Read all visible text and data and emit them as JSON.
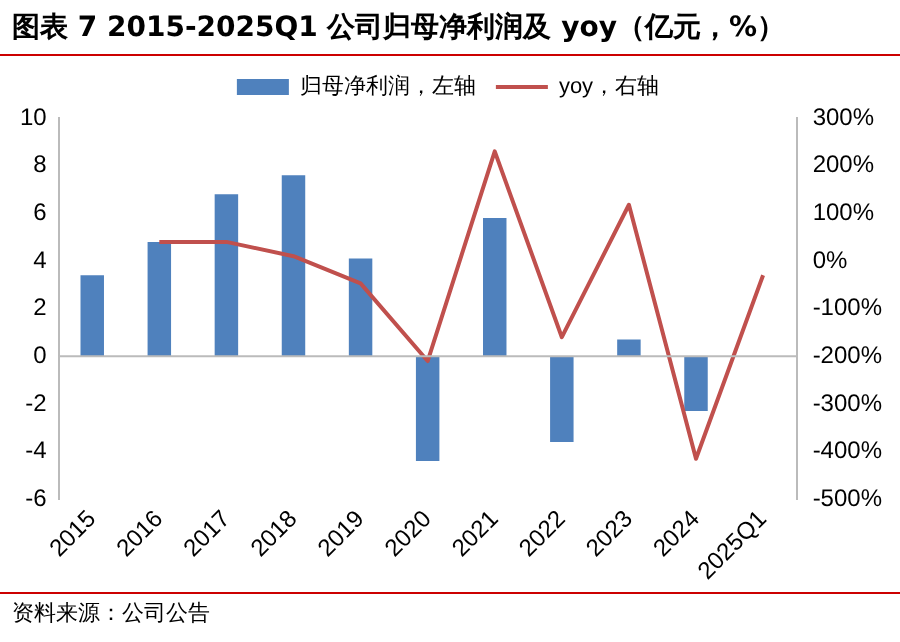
{
  "chart_data": {
    "type": "bar",
    "title": "图表 7 2015-2025Q1 公司归母净利润及 yoy（亿元，%）",
    "categories": [
      "2015",
      "2016",
      "2017",
      "2018",
      "2019",
      "2020",
      "2021",
      "2022",
      "2023",
      "2024",
      "2025Q1"
    ],
    "series": [
      {
        "name": "归母净利润，左轴",
        "color": "#4f81bd",
        "values": [
          3.4,
          4.8,
          6.8,
          7.6,
          4.1,
          -4.4,
          5.8,
          -3.6,
          0.7,
          -2.3,
          null
        ]
      },
      {
        "name": "yoy，右轴",
        "type": "line",
        "axis": "y2",
        "color": "#c0504d",
        "values": [
          null,
          40,
          40,
          10,
          -47,
          -210,
          230,
          -160,
          118,
          -415,
          -30
        ]
      }
    ],
    "ylim": [
      -6,
      10
    ],
    "yticks": [
      -6,
      -4,
      -2,
      0,
      2,
      4,
      6,
      8,
      10
    ],
    "y2lim": [
      -500,
      300
    ],
    "y2ticks": [
      {
        "value": -500,
        "label": "-500%"
      },
      {
        "value": -400,
        "label": "-400%"
      },
      {
        "value": -300,
        "label": "-300%"
      },
      {
        "value": -200,
        "label": "-200%"
      },
      {
        "value": -100,
        "label": "-100%"
      },
      {
        "value": 0,
        "label": "0%"
      },
      {
        "value": 100,
        "label": "100%"
      },
      {
        "value": 200,
        "label": "200%"
      },
      {
        "value": 300,
        "label": "300%"
      }
    ],
    "ref_lines": [
      {
        "axis": "y",
        "value": 0,
        "color": "#bbbbbb"
      }
    ],
    "legend": "top",
    "grid": false,
    "marker": "none",
    "annotations": [
      "资料来源：公司公告"
    ]
  }
}
